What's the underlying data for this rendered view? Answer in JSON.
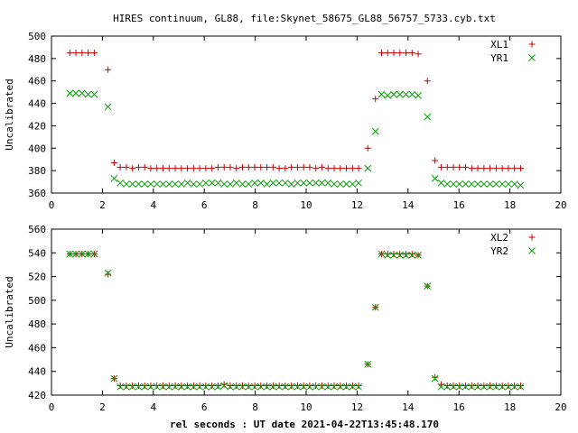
{
  "title": "HIRES continuum, GL88, file:Skynet_58675_GL88_56757_5733.cyb.txt",
  "xlabel": "rel seconds : UT date 2021-04-22T13:45:48.170",
  "colors": {
    "red": "#cc0000",
    "green": "#00a000"
  },
  "chart_data": [
    {
      "type": "scatter",
      "ylabel": "Uncalibrated",
      "xlim": [
        0,
        20
      ],
      "ylim": [
        360,
        500
      ],
      "xticks": [
        0,
        2,
        4,
        6,
        8,
        10,
        12,
        14,
        16,
        18,
        20
      ],
      "yticks": [
        360,
        380,
        400,
        420,
        440,
        460,
        480,
        500
      ],
      "legend_position": "top-right",
      "series": [
        {
          "name": "XL1",
          "marker": "plus",
          "color": "#cc0000",
          "x": [
            0.72,
            0.96,
            1.2,
            1.44,
            1.68,
            2.22,
            2.46,
            2.7,
            2.94,
            3.18,
            3.42,
            3.66,
            3.9,
            4.14,
            4.38,
            4.62,
            4.86,
            5.1,
            5.34,
            5.58,
            5.82,
            6.06,
            6.3,
            6.54,
            6.78,
            7.02,
            7.26,
            7.5,
            7.74,
            7.98,
            8.22,
            8.46,
            8.7,
            8.94,
            9.18,
            9.42,
            9.66,
            9.9,
            10.14,
            10.38,
            10.62,
            10.86,
            11.1,
            11.34,
            11.58,
            11.82,
            12.06,
            12.42,
            12.72,
            12.96,
            13.2,
            13.44,
            13.68,
            13.92,
            14.16,
            14.4,
            14.76,
            15.06,
            15.3,
            15.54,
            15.78,
            16.02,
            16.26,
            16.5,
            16.74,
            16.98,
            17.22,
            17.46,
            17.7,
            17.94,
            18.18,
            18.42
          ],
          "y": [
            485,
            485,
            485,
            485,
            485,
            470,
            387,
            383,
            383,
            382,
            383,
            383,
            382,
            382,
            382,
            382,
            382,
            382,
            382,
            382,
            382,
            382,
            382,
            383,
            383,
            383,
            382,
            383,
            383,
            383,
            383,
            383,
            383,
            382,
            382,
            383,
            383,
            383,
            383,
            382,
            383,
            382,
            382,
            382,
            382,
            382,
            382,
            400,
            444,
            485,
            485,
            485,
            485,
            485,
            485,
            484,
            460,
            389,
            383,
            383,
            383,
            383,
            383,
            382,
            382,
            382,
            382,
            382,
            382,
            382,
            382,
            382
          ]
        },
        {
          "name": "YR1",
          "marker": "cross",
          "color": "#00a000",
          "x": [
            0.72,
            0.96,
            1.2,
            1.44,
            1.68,
            2.22,
            2.46,
            2.7,
            2.94,
            3.18,
            3.42,
            3.66,
            3.9,
            4.14,
            4.38,
            4.62,
            4.86,
            5.1,
            5.34,
            5.58,
            5.82,
            6.06,
            6.3,
            6.54,
            6.78,
            7.02,
            7.26,
            7.5,
            7.74,
            7.98,
            8.22,
            8.46,
            8.7,
            8.94,
            9.18,
            9.42,
            9.66,
            9.9,
            10.14,
            10.38,
            10.62,
            10.86,
            11.1,
            11.34,
            11.58,
            11.82,
            12.06,
            12.42,
            12.72,
            12.96,
            13.2,
            13.44,
            13.68,
            13.92,
            14.16,
            14.4,
            14.76,
            15.06,
            15.3,
            15.54,
            15.78,
            16.02,
            16.26,
            16.5,
            16.74,
            16.98,
            17.22,
            17.46,
            17.7,
            17.94,
            18.18,
            18.42
          ],
          "y": [
            449,
            449,
            449,
            448,
            448,
            437,
            373,
            369,
            368,
            368,
            368,
            368,
            368,
            368,
            368,
            368,
            368,
            368,
            369,
            368,
            368,
            369,
            369,
            369,
            368,
            368,
            369,
            368,
            368,
            369,
            369,
            368,
            369,
            369,
            369,
            368,
            369,
            369,
            369,
            369,
            369,
            369,
            368,
            368,
            368,
            368,
            369,
            382,
            415,
            448,
            447,
            448,
            448,
            448,
            448,
            447,
            428,
            373,
            369,
            368,
            368,
            368,
            368,
            368,
            368,
            368,
            368,
            368,
            368,
            368,
            368,
            367
          ]
        }
      ]
    },
    {
      "type": "scatter",
      "ylabel": "Uncalibrated",
      "xlim": [
        0,
        20
      ],
      "ylim": [
        420,
        560
      ],
      "xticks": [
        0,
        2,
        4,
        6,
        8,
        10,
        12,
        14,
        16,
        18,
        20
      ],
      "yticks": [
        420,
        440,
        460,
        480,
        500,
        520,
        540,
        560
      ],
      "legend_position": "top-right",
      "series": [
        {
          "name": "XL2",
          "marker": "plus",
          "color": "#cc0000",
          "x": [
            0.72,
            0.96,
            1.2,
            1.44,
            1.68,
            2.22,
            2.46,
            2.7,
            2.94,
            3.18,
            3.42,
            3.66,
            3.9,
            4.14,
            4.38,
            4.62,
            4.86,
            5.1,
            5.34,
            5.58,
            5.82,
            6.06,
            6.3,
            6.54,
            6.78,
            7.02,
            7.26,
            7.5,
            7.74,
            7.98,
            8.22,
            8.46,
            8.7,
            8.94,
            9.18,
            9.42,
            9.66,
            9.9,
            10.14,
            10.38,
            10.62,
            10.86,
            11.1,
            11.34,
            11.58,
            11.82,
            12.06,
            12.42,
            12.72,
            12.96,
            13.2,
            13.44,
            13.68,
            13.92,
            14.16,
            14.4,
            14.76,
            15.06,
            15.3,
            15.54,
            15.78,
            16.02,
            16.26,
            16.5,
            16.74,
            16.98,
            17.22,
            17.46,
            17.7,
            17.94,
            18.18,
            18.42
          ],
          "y": [
            539,
            539,
            539,
            539,
            539,
            522,
            434,
            428,
            428,
            428,
            428,
            428,
            428,
            428,
            428,
            428,
            428,
            428,
            428,
            428,
            428,
            428,
            428,
            428,
            429,
            428,
            428,
            428,
            428,
            428,
            428,
            428,
            428,
            428,
            428,
            428,
            428,
            428,
            428,
            428,
            428,
            428,
            428,
            428,
            428,
            428,
            428,
            446,
            494,
            539,
            539,
            539,
            539,
            539,
            539,
            538,
            512,
            435,
            429,
            428,
            428,
            428,
            428,
            428,
            428,
            428,
            428,
            428,
            428,
            428,
            428,
            428
          ]
        },
        {
          "name": "YR2",
          "marker": "cross",
          "color": "#00a000",
          "x": [
            0.72,
            0.96,
            1.2,
            1.44,
            1.68,
            2.22,
            2.46,
            2.7,
            2.94,
            3.18,
            3.42,
            3.66,
            3.9,
            4.14,
            4.38,
            4.62,
            4.86,
            5.1,
            5.34,
            5.58,
            5.82,
            6.06,
            6.3,
            6.54,
            6.78,
            7.02,
            7.26,
            7.5,
            7.74,
            7.98,
            8.22,
            8.46,
            8.7,
            8.94,
            9.18,
            9.42,
            9.66,
            9.9,
            10.14,
            10.38,
            10.62,
            10.86,
            11.1,
            11.34,
            11.58,
            11.82,
            12.06,
            12.42,
            12.72,
            12.96,
            13.2,
            13.44,
            13.68,
            13.92,
            14.16,
            14.4,
            14.76,
            15.06,
            15.3,
            15.54,
            15.78,
            16.02,
            16.26,
            16.5,
            16.74,
            16.98,
            17.22,
            17.46,
            17.7,
            17.94,
            18.18,
            18.42
          ],
          "y": [
            539,
            539,
            539,
            539,
            539,
            523,
            434,
            427,
            427,
            427,
            427,
            427,
            427,
            427,
            427,
            427,
            427,
            427,
            427,
            427,
            427,
            427,
            427,
            427,
            428,
            427,
            427,
            427,
            427,
            427,
            427,
            427,
            427,
            427,
            427,
            427,
            427,
            427,
            427,
            427,
            427,
            427,
            427,
            427,
            427,
            427,
            427,
            446,
            494,
            539,
            538,
            538,
            538,
            538,
            538,
            538,
            512,
            434,
            427,
            427,
            427,
            427,
            427,
            427,
            427,
            427,
            427,
            427,
            427,
            427,
            427,
            427
          ]
        }
      ]
    }
  ]
}
